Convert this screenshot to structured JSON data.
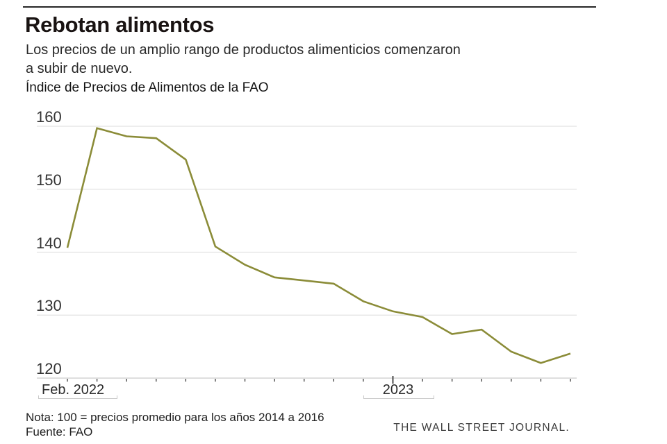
{
  "header": {
    "title": "Rebotan alimentos",
    "subtitle_line1": "Los precios de un amplio rango de productos alimenticios comenzaron",
    "subtitle_line2": "a subir de nuevo.",
    "chart_label": "Índice de Precios de Alimentos de la FAO"
  },
  "axis": {
    "x_label_start": "Feb. 2022",
    "x_label_year": "2023"
  },
  "footer": {
    "note": "Nota: 100 = precios promedio para los años 2014 a 2016",
    "source": "Fuente: FAO",
    "credit": "THE WALL STREET JOURNAL."
  },
  "chart_data": {
    "type": "line",
    "title": "Índice de Precios de Alimentos de la FAO",
    "x": [
      "2022-02",
      "2022-03",
      "2022-04",
      "2022-05",
      "2022-06",
      "2022-07",
      "2022-08",
      "2022-09",
      "2022-10",
      "2022-11",
      "2022-12",
      "2023-01",
      "2023-02",
      "2023-03",
      "2023-04",
      "2023-05",
      "2023-06",
      "2023-07"
    ],
    "values": [
      140.7,
      159.7,
      158.4,
      158.1,
      154.7,
      140.9,
      138.0,
      136.0,
      135.5,
      135.0,
      132.2,
      130.6,
      129.7,
      127.0,
      127.7,
      124.2,
      122.4,
      123.9
    ],
    "y_ticks": [
      120,
      130,
      140,
      150,
      160
    ],
    "ylim": [
      120,
      160
    ],
    "x_tick_labels": [
      "Feb. 2022",
      "2023"
    ],
    "year_tick_index": 11,
    "grid": true,
    "legend": "none",
    "line_color": "#8b8c38",
    "grid_color": "#e2e2e2",
    "axis_color": "#c9c9c9",
    "tick_color": "#4a4a4a"
  }
}
